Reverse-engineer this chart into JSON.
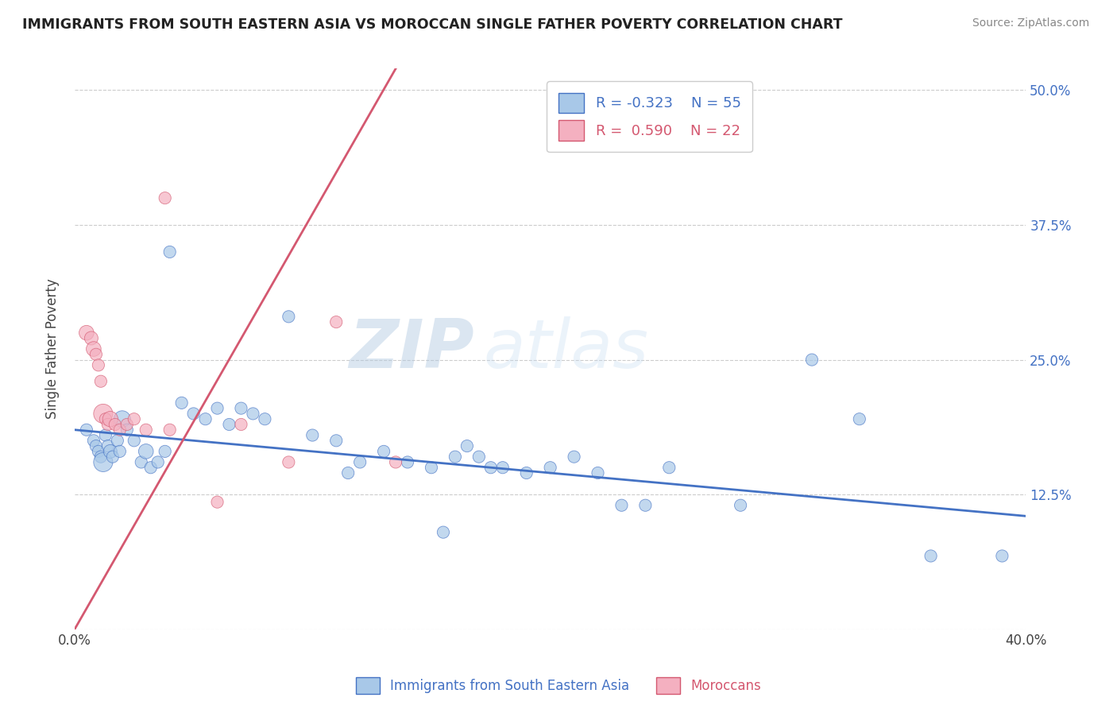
{
  "title": "IMMIGRANTS FROM SOUTH EASTERN ASIA VS MOROCCAN SINGLE FATHER POVERTY CORRELATION CHART",
  "source": "Source: ZipAtlas.com",
  "ylabel": "Single Father Poverty",
  "yticks": [
    0.0,
    0.125,
    0.25,
    0.375,
    0.5
  ],
  "ytick_labels": [
    "",
    "12.5%",
    "25.0%",
    "37.5%",
    "50.0%"
  ],
  "xlim": [
    0.0,
    0.4
  ],
  "ylim": [
    0.0,
    0.52
  ],
  "watermark_zip": "ZIP",
  "watermark_atlas": "atlas",
  "legend_blue_r": "R = -0.323",
  "legend_blue_n": "N = 55",
  "legend_pink_r": "R =  0.590",
  "legend_pink_n": "N = 22",
  "legend_blue_label": "Immigrants from South Eastern Asia",
  "legend_pink_label": "Moroccans",
  "blue_color": "#a8c8e8",
  "blue_line_color": "#4472c4",
  "pink_color": "#f4b0c0",
  "pink_line_color": "#d45870",
  "blue_trend_x": [
    0.0,
    0.4
  ],
  "blue_trend_y": [
    0.185,
    0.105
  ],
  "pink_trend_x": [
    0.0,
    0.135
  ],
  "pink_trend_y": [
    0.0,
    0.52
  ],
  "blue_x": [
    0.005,
    0.008,
    0.009,
    0.01,
    0.011,
    0.012,
    0.013,
    0.014,
    0.015,
    0.016,
    0.018,
    0.019,
    0.02,
    0.022,
    0.025,
    0.028,
    0.03,
    0.032,
    0.035,
    0.038,
    0.04,
    0.045,
    0.05,
    0.055,
    0.06,
    0.065,
    0.07,
    0.075,
    0.08,
    0.09,
    0.1,
    0.11,
    0.115,
    0.12,
    0.13,
    0.14,
    0.15,
    0.155,
    0.16,
    0.165,
    0.17,
    0.175,
    0.18,
    0.19,
    0.2,
    0.21,
    0.22,
    0.23,
    0.24,
    0.25,
    0.28,
    0.31,
    0.33,
    0.36,
    0.39
  ],
  "blue_y": [
    0.185,
    0.175,
    0.17,
    0.165,
    0.16,
    0.155,
    0.18,
    0.17,
    0.165,
    0.16,
    0.175,
    0.165,
    0.195,
    0.185,
    0.175,
    0.155,
    0.165,
    0.15,
    0.155,
    0.165,
    0.35,
    0.21,
    0.2,
    0.195,
    0.205,
    0.19,
    0.205,
    0.2,
    0.195,
    0.29,
    0.18,
    0.175,
    0.145,
    0.155,
    0.165,
    0.155,
    0.15,
    0.09,
    0.16,
    0.17,
    0.16,
    0.15,
    0.15,
    0.145,
    0.15,
    0.16,
    0.145,
    0.115,
    0.115,
    0.15,
    0.115,
    0.25,
    0.195,
    0.068,
    0.068
  ],
  "blue_sizes": [
    80,
    80,
    80,
    80,
    80,
    200,
    80,
    80,
    100,
    80,
    80,
    80,
    150,
    80,
    80,
    80,
    120,
    80,
    80,
    80,
    80,
    80,
    80,
    80,
    80,
    80,
    80,
    80,
    80,
    80,
    80,
    80,
    80,
    80,
    80,
    80,
    80,
    80,
    80,
    80,
    80,
    80,
    80,
    80,
    80,
    80,
    80,
    80,
    80,
    80,
    80,
    80,
    80,
    80,
    80
  ],
  "pink_x": [
    0.005,
    0.007,
    0.008,
    0.009,
    0.01,
    0.011,
    0.012,
    0.013,
    0.014,
    0.015,
    0.017,
    0.019,
    0.022,
    0.025,
    0.03,
    0.038,
    0.04,
    0.06,
    0.07,
    0.09,
    0.11,
    0.135
  ],
  "pink_y": [
    0.275,
    0.27,
    0.26,
    0.255,
    0.245,
    0.23,
    0.2,
    0.195,
    0.19,
    0.195,
    0.19,
    0.185,
    0.19,
    0.195,
    0.185,
    0.4,
    0.185,
    0.118,
    0.19,
    0.155,
    0.285,
    0.155
  ],
  "pink_sizes": [
    120,
    100,
    120,
    80,
    80,
    80,
    200,
    80,
    80,
    130,
    80,
    80,
    80,
    80,
    80,
    80,
    80,
    80,
    80,
    80,
    80,
    80
  ]
}
